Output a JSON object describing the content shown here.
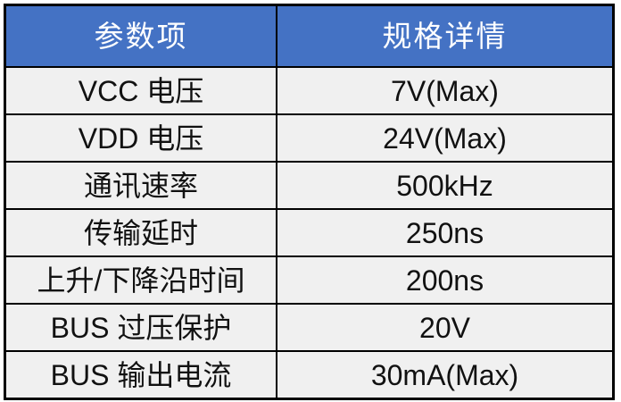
{
  "table": {
    "headers": [
      "参数项",
      "规格详情"
    ],
    "rows": [
      {
        "param": "VCC 电压",
        "value": "7V(Max)"
      },
      {
        "param": "VDD 电压",
        "value": "24V(Max)"
      },
      {
        "param": "通讯速率",
        "value": "500kHz"
      },
      {
        "param": "传输延时",
        "value": "250ns"
      },
      {
        "param": "上升/下降沿时间",
        "value": "200ns"
      },
      {
        "param": "BUS 过压保护",
        "value": "20V"
      },
      {
        "param": "BUS 输出电流",
        "value": "30mA(Max)"
      }
    ]
  },
  "colors": {
    "header_bg": "#4472C4",
    "header_text": "#FFFFFF",
    "row_bg": "#F0F0F0",
    "grid_line": "#000000",
    "page_bg": "#FFFFFF"
  },
  "chart_data": {
    "type": "table",
    "title": "",
    "columns": [
      "参数项",
      "规格详情"
    ],
    "rows": [
      [
        "VCC 电压",
        "7V(Max)"
      ],
      [
        "VDD 电压",
        "24V(Max)"
      ],
      [
        "通讯速率",
        "500kHz"
      ],
      [
        "传输延时",
        "250ns"
      ],
      [
        "上升/下降沿时间",
        "200ns"
      ],
      [
        "BUS 过压保护",
        "20V"
      ],
      [
        "BUS 输出电流",
        "30mA(Max)"
      ]
    ],
    "layout": {
      "header_fill": "#4472C4",
      "header_text_color": "#FFFFFF",
      "body_fill": "#F0F0F0",
      "border_color": "#000000",
      "text_align": "center"
    }
  }
}
